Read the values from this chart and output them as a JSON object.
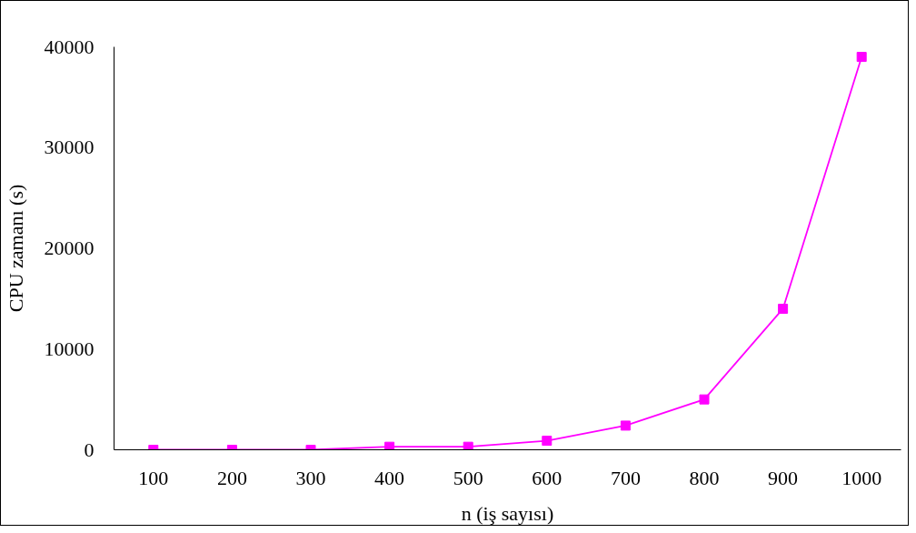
{
  "chart_data": {
    "type": "line",
    "xlabel": "n (iş sayısı)",
    "ylabel": "CPU zamanı (s)",
    "categories": [
      "100",
      "200",
      "300",
      "400",
      "500",
      "600",
      "700",
      "800",
      "900",
      "1000"
    ],
    "series": [
      {
        "color": "#ff00ff",
        "values": [
          0,
          0,
          0,
          300,
          300,
          900,
          2400,
          5000,
          14000,
          39000
        ]
      }
    ],
    "ylim": [
      0,
      40000
    ],
    "yticks": [
      0,
      10000,
      20000,
      30000,
      40000
    ],
    "grid": false,
    "marker": "square",
    "line_style": "solid"
  }
}
